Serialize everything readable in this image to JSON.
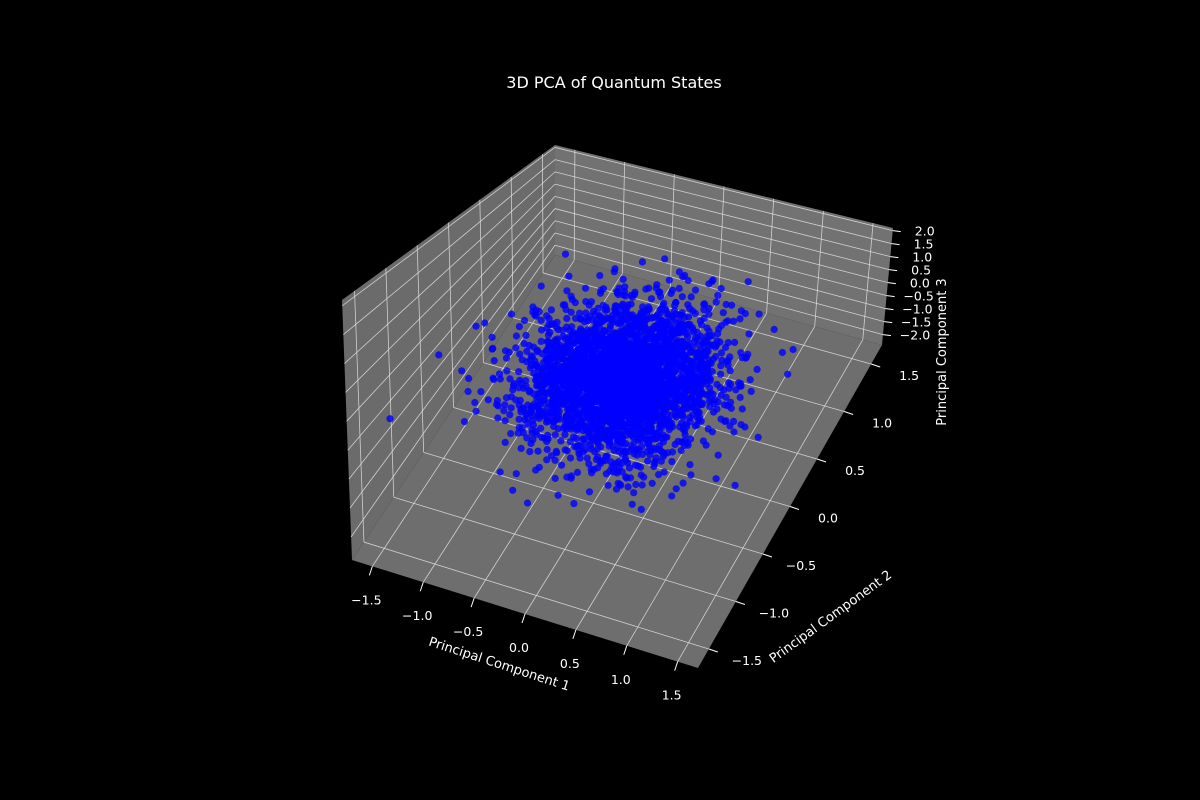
{
  "chart_data": {
    "type": "scatter",
    "title": "3D PCA of Quantum States",
    "xlabel": "Principal Component 1",
    "ylabel": "Principal Component 2",
    "zlabel": "Principal Component 3",
    "xlim": [
      -1.7,
      1.7
    ],
    "ylim": [
      -1.7,
      1.7
    ],
    "zlim": [
      -2.4,
      2.1
    ],
    "x_ticks": [
      "−1.5",
      "−1.0",
      "−0.5",
      "0.0",
      "0.5",
      "1.0",
      "1.5"
    ],
    "y_ticks": [
      "−1.5",
      "−1.0",
      "−0.5",
      "0.0",
      "0.5",
      "1.0",
      "1.5"
    ],
    "z_ticks": [
      "−2.0",
      "−1.5",
      "−1.0",
      "−0.5",
      "0.0",
      "0.5",
      "1.0",
      "1.5",
      "2.0"
    ],
    "grid": true,
    "series": [
      {
        "color": "#0000ff",
        "distribution": "approximately normal cloud centered at (0, 0, -0.5), roughly 3000 points, std ~0.45 per axis",
        "points": [
          [
            -1.05,
            -0.65,
            0.95
          ],
          [
            1.25,
            0.45,
            0.85
          ],
          [
            -0.2,
            0.1,
            -0.55
          ],
          [
            0.35,
            -0.3,
            -0.4
          ],
          [
            -0.85,
            0.6,
            -0.2
          ],
          [
            0.95,
            -0.8,
            -1.1
          ],
          [
            -1.35,
            0.1,
            -0.9
          ],
          [
            1.3,
            -0.2,
            -0.35
          ],
          [
            0.1,
            1.05,
            -0.75
          ],
          [
            -0.45,
            -1.1,
            -1.35
          ],
          [
            0.7,
            0.85,
            0.2
          ],
          [
            -0.65,
            -0.35,
            -1.6
          ],
          [
            0.0,
            0.0,
            -0.5
          ],
          [
            0.55,
            -0.95,
            0.05
          ],
          [
            -1.1,
            0.9,
            0.35
          ],
          [
            1.1,
            1.1,
            -1.25
          ]
        ]
      }
    ]
  }
}
